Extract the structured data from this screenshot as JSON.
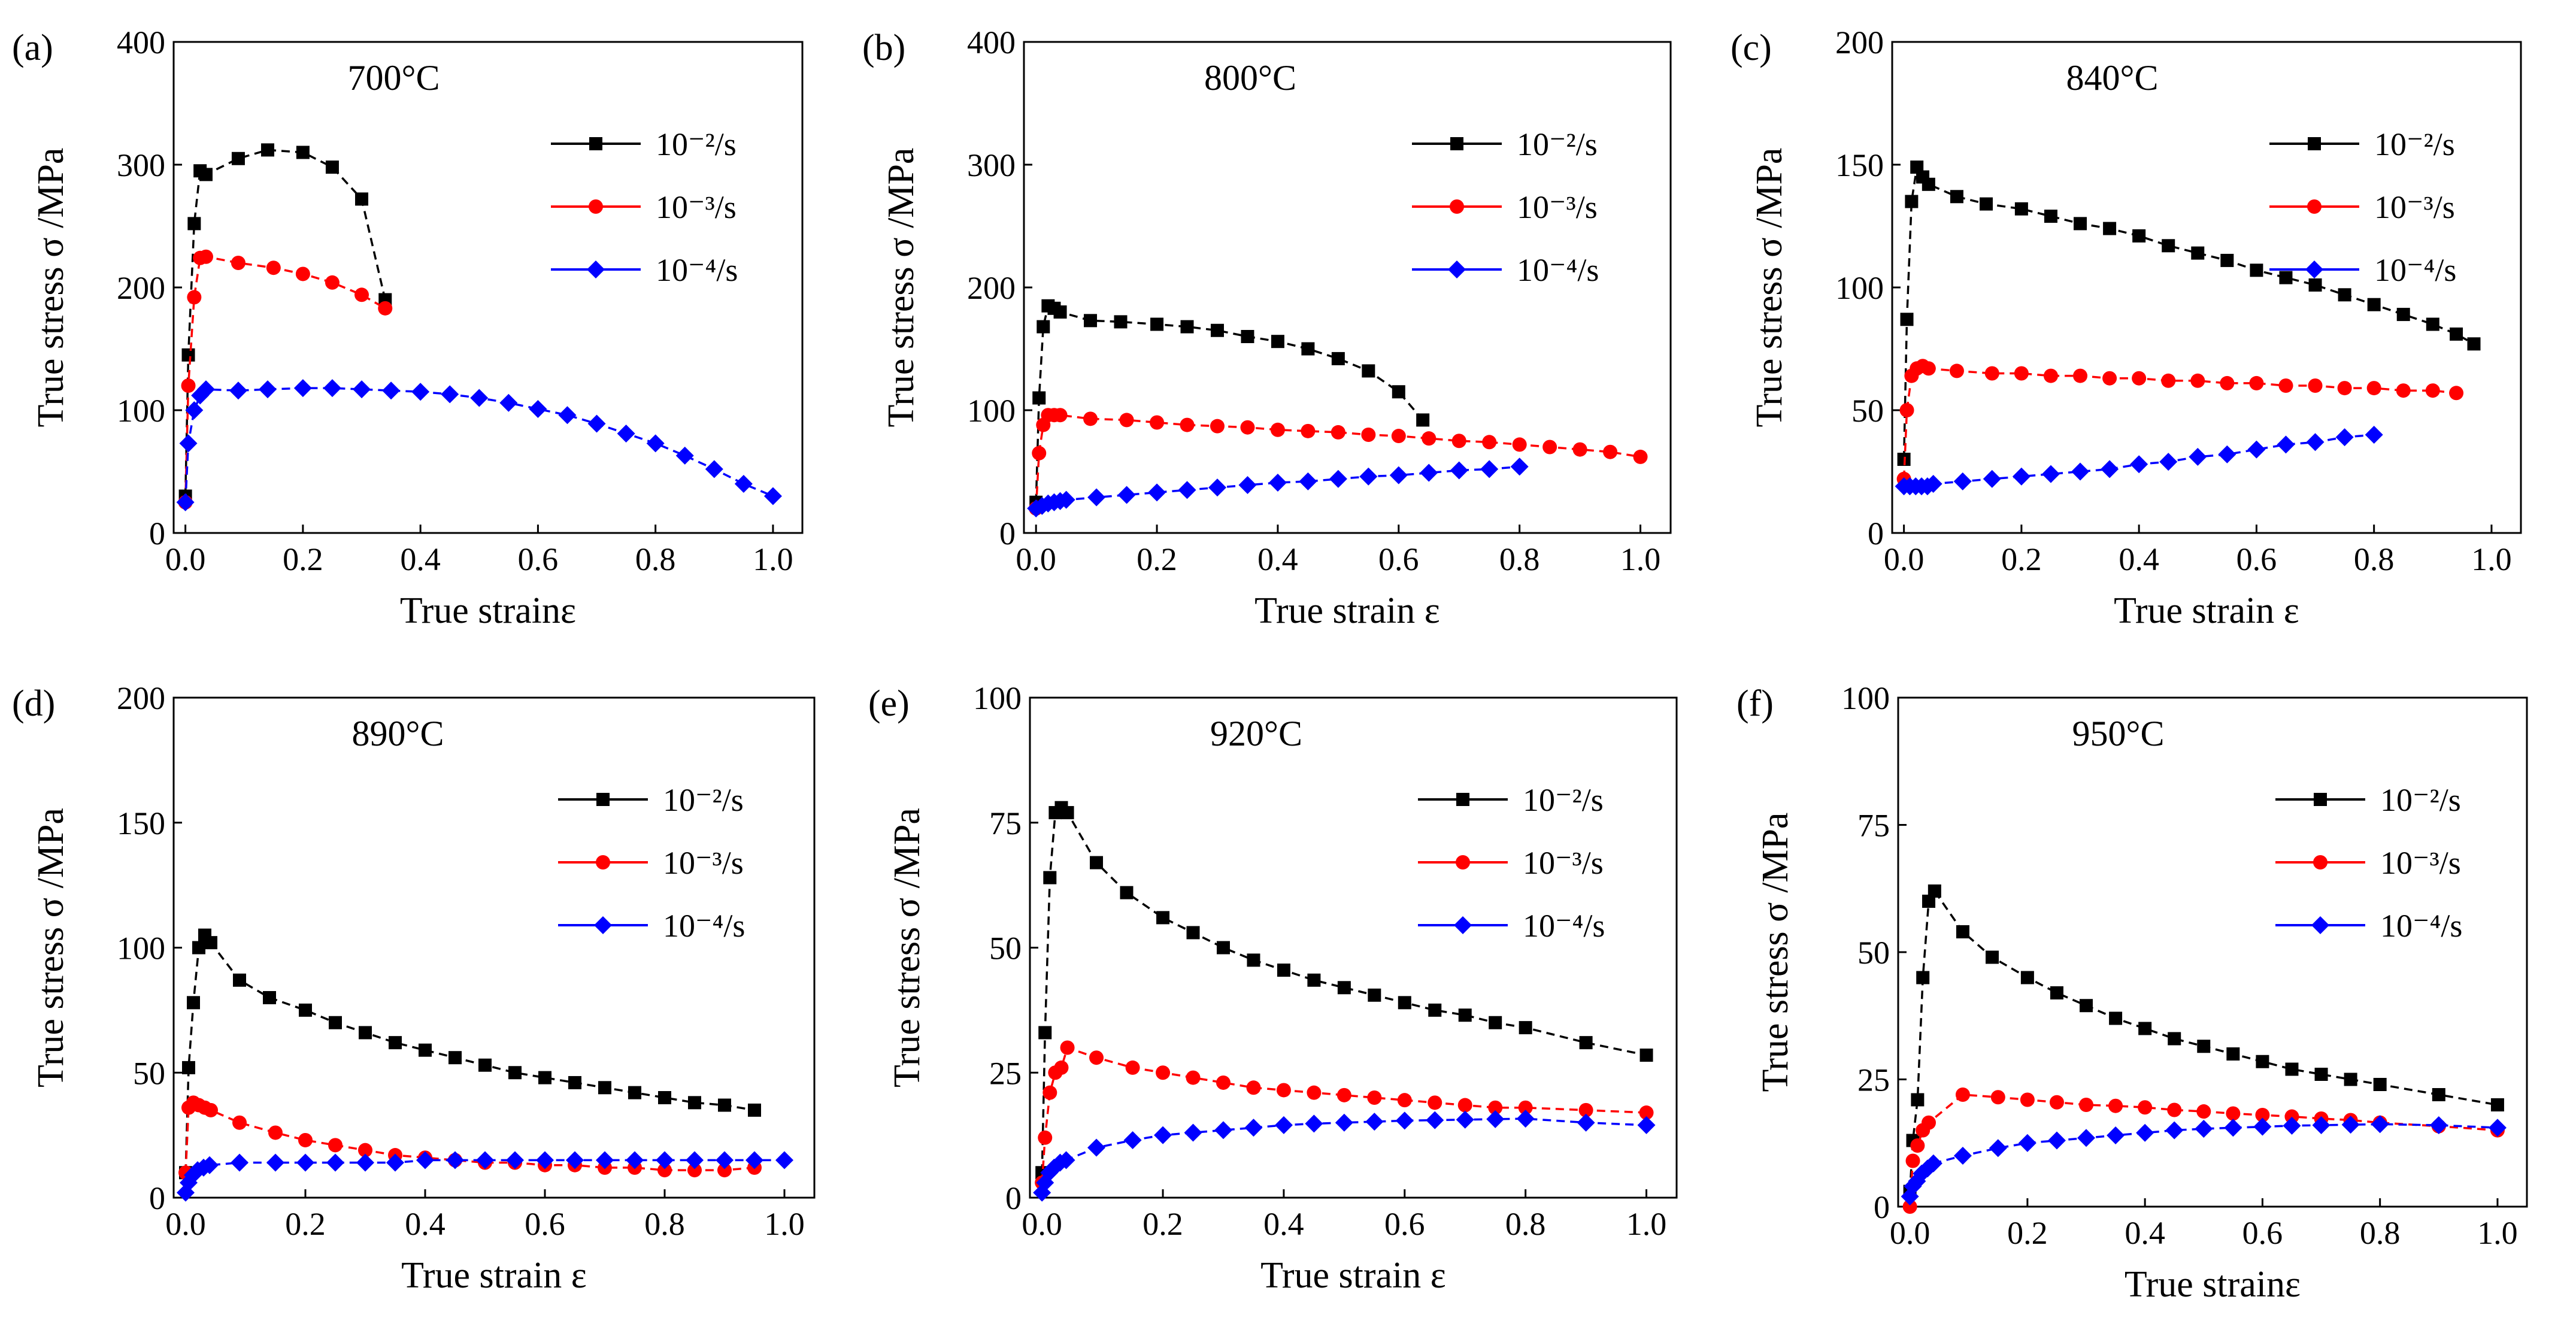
{
  "figure": {
    "legend_labels": [
      "10⁻²/s",
      "10⁻³/s",
      "10⁻⁴/s"
    ],
    "series_colors": [
      "#000000",
      "#ff0000",
      "#0000ff"
    ],
    "marker_shapes": [
      "square",
      "circle",
      "diamond"
    ]
  },
  "chart_data": [
    {
      "type": "line",
      "panel": "(a)",
      "title": "700°C",
      "xlabel": "True strainε",
      "ylabel": "True stress σ /MPa",
      "xlim": [
        -0.02,
        1.05
      ],
      "ylim": [
        0,
        400
      ],
      "xticks": [
        "0.0",
        "0.2",
        "0.4",
        "0.6",
        "0.8",
        "1.0"
      ],
      "yticks": [
        "0",
        "100",
        "200",
        "300",
        "400"
      ],
      "series": [
        {
          "name": "10⁻²/s",
          "x": [
            0,
            0.005,
            0.015,
            0.025,
            0.035,
            0.09,
            0.14,
            0.2,
            0.25,
            0.3,
            0.34
          ],
          "y": [
            30,
            145,
            252,
            295,
            292,
            305,
            312,
            310,
            298,
            272,
            190
          ]
        },
        {
          "name": "10⁻³/s",
          "x": [
            0,
            0.005,
            0.015,
            0.025,
            0.035,
            0.09,
            0.15,
            0.2,
            0.25,
            0.3,
            0.34
          ],
          "y": [
            25,
            120,
            192,
            224,
            225,
            220,
            216,
            211,
            204,
            194,
            183
          ]
        },
        {
          "name": "10⁻⁴/s",
          "x": [
            0,
            0.005,
            0.015,
            0.025,
            0.035,
            0.09,
            0.14,
            0.2,
            0.25,
            0.3,
            0.35,
            0.4,
            0.45,
            0.5,
            0.55,
            0.6,
            0.65,
            0.7,
            0.75,
            0.8,
            0.85,
            0.9,
            0.95,
            1.0
          ],
          "y": [
            25,
            73,
            100,
            112,
            117,
            116,
            117,
            118,
            118,
            117,
            116,
            115,
            113,
            110,
            106,
            101,
            96,
            89,
            81,
            73,
            63,
            52,
            40,
            30
          ]
        }
      ]
    },
    {
      "type": "line",
      "panel": "(b)",
      "title": "800°C",
      "xlabel": "True strain ε",
      "ylabel": "True stress σ /MPa",
      "xlim": [
        -0.02,
        1.05
      ],
      "ylim": [
        0,
        400
      ],
      "xticks": [
        "0.0",
        "0.2",
        "0.4",
        "0.6",
        "0.8",
        "1.0"
      ],
      "yticks": [
        "0",
        "100",
        "200",
        "300",
        "400"
      ],
      "series": [
        {
          "name": "10⁻²/s",
          "x": [
            0,
            0.005,
            0.012,
            0.02,
            0.03,
            0.04,
            0.09,
            0.14,
            0.2,
            0.25,
            0.3,
            0.35,
            0.4,
            0.45,
            0.5,
            0.55,
            0.6,
            0.64
          ],
          "y": [
            25,
            110,
            168,
            185,
            183,
            180,
            173,
            172,
            170,
            168,
            165,
            160,
            156,
            150,
            142,
            132,
            115,
            92
          ]
        },
        {
          "name": "10⁻³/s",
          "x": [
            0,
            0.005,
            0.012,
            0.02,
            0.03,
            0.04,
            0.09,
            0.15,
            0.2,
            0.25,
            0.3,
            0.35,
            0.4,
            0.45,
            0.5,
            0.55,
            0.6,
            0.65,
            0.7,
            0.75,
            0.8,
            0.85,
            0.9,
            0.95,
            1.0
          ],
          "y": [
            20,
            65,
            88,
            96,
            96,
            96,
            93,
            92,
            90,
            88,
            87,
            86,
            84,
            83,
            82,
            80,
            79,
            77,
            75,
            74,
            72,
            70,
            68,
            66,
            62
          ]
        },
        {
          "name": "10⁻⁴/s",
          "x": [
            0,
            0.01,
            0.02,
            0.03,
            0.04,
            0.05,
            0.1,
            0.15,
            0.2,
            0.25,
            0.3,
            0.35,
            0.4,
            0.45,
            0.5,
            0.55,
            0.6,
            0.65,
            0.7,
            0.75,
            0.8
          ],
          "y": [
            20,
            22,
            24,
            25,
            26,
            27,
            29,
            31,
            33,
            35,
            37,
            39,
            41,
            42,
            44,
            46,
            47,
            49,
            51,
            52,
            54
          ]
        }
      ]
    },
    {
      "type": "line",
      "panel": "(c)",
      "title": "840°C",
      "xlabel": "True strain ε",
      "ylabel": "True stress σ /MPa",
      "xlim": [
        -0.02,
        1.05
      ],
      "ylim": [
        0,
        200
      ],
      "xticks": [
        "0.0",
        "0.2",
        "0.4",
        "0.6",
        "0.8",
        "1.0"
      ],
      "yticks": [
        "0",
        "50",
        "100",
        "150",
        "200"
      ],
      "series": [
        {
          "name": "10⁻²/s",
          "x": [
            0,
            0.005,
            0.013,
            0.022,
            0.032,
            0.042,
            0.09,
            0.14,
            0.2,
            0.25,
            0.3,
            0.35,
            0.4,
            0.45,
            0.5,
            0.55,
            0.6,
            0.65,
            0.7,
            0.75,
            0.8,
            0.85,
            0.9,
            0.94,
            0.97
          ],
          "y": [
            30,
            87,
            135,
            149,
            145,
            142,
            137,
            134,
            132,
            129,
            126,
            124,
            121,
            117,
            114,
            111,
            107,
            104,
            101,
            97,
            93,
            89,
            85,
            81,
            77
          ]
        },
        {
          "name": "10⁻³/s",
          "x": [
            0,
            0.005,
            0.013,
            0.022,
            0.032,
            0.042,
            0.09,
            0.15,
            0.2,
            0.25,
            0.3,
            0.35,
            0.4,
            0.45,
            0.5,
            0.55,
            0.6,
            0.65,
            0.7,
            0.75,
            0.8,
            0.85,
            0.9,
            0.94
          ],
          "y": [
            22,
            50,
            64,
            67,
            68,
            67,
            66,
            65,
            65,
            64,
            64,
            63,
            63,
            62,
            62,
            61,
            61,
            60,
            60,
            59,
            59,
            58,
            58,
            57
          ]
        },
        {
          "name": "10⁻⁴/s",
          "x": [
            0,
            0.01,
            0.02,
            0.03,
            0.04,
            0.05,
            0.1,
            0.15,
            0.2,
            0.25,
            0.3,
            0.35,
            0.4,
            0.45,
            0.5,
            0.55,
            0.6,
            0.65,
            0.7,
            0.75,
            0.8
          ],
          "y": [
            19,
            19,
            19,
            19,
            19,
            20,
            21,
            22,
            23,
            24,
            25,
            26,
            28,
            29,
            31,
            32,
            34,
            36,
            37,
            39,
            40
          ]
        }
      ]
    },
    {
      "type": "line",
      "panel": "(d)",
      "title": "890°C",
      "xlabel": "True strain ε",
      "ylabel": "True stress σ /MPa",
      "xlim": [
        -0.02,
        1.05
      ],
      "ylim": [
        0,
        200
      ],
      "xticks": [
        "0.0",
        "0.2",
        "0.4",
        "0.6",
        "0.8",
        "1.0"
      ],
      "yticks": [
        "0",
        "50",
        "100",
        "150",
        "200"
      ],
      "series": [
        {
          "name": "10⁻²/s",
          "x": [
            0,
            0.005,
            0.013,
            0.022,
            0.032,
            0.042,
            0.09,
            0.14,
            0.2,
            0.25,
            0.3,
            0.35,
            0.4,
            0.45,
            0.5,
            0.55,
            0.6,
            0.65,
            0.7,
            0.75,
            0.8,
            0.85,
            0.9,
            0.95
          ],
          "y": [
            10,
            52,
            78,
            100,
            105,
            102,
            87,
            80,
            75,
            70,
            66,
            62,
            59,
            56,
            53,
            50,
            48,
            46,
            44,
            42,
            40,
            38,
            37,
            35
          ]
        },
        {
          "name": "10⁻³/s",
          "x": [
            0,
            0.005,
            0.013,
            0.022,
            0.032,
            0.042,
            0.09,
            0.15,
            0.2,
            0.25,
            0.3,
            0.35,
            0.4,
            0.45,
            0.5,
            0.55,
            0.6,
            0.65,
            0.7,
            0.75,
            0.8,
            0.85,
            0.9,
            0.95
          ],
          "y": [
            10,
            36,
            38,
            37,
            36,
            35,
            30,
            26,
            23,
            21,
            19,
            17,
            16,
            15,
            14,
            14,
            13,
            13,
            12,
            12,
            11,
            11,
            11,
            12
          ]
        },
        {
          "name": "10⁻⁴/s",
          "x": [
            0,
            0.005,
            0.012,
            0.02,
            0.03,
            0.04,
            0.09,
            0.15,
            0.2,
            0.25,
            0.3,
            0.35,
            0.4,
            0.45,
            0.5,
            0.55,
            0.6,
            0.65,
            0.7,
            0.75,
            0.8,
            0.85,
            0.9,
            0.95,
            1.0
          ],
          "y": [
            2,
            6,
            9,
            11,
            12,
            13,
            14,
            14,
            14,
            14,
            14,
            14,
            15,
            15,
            15,
            15,
            15,
            15,
            15,
            15,
            15,
            15,
            15,
            15,
            15
          ]
        }
      ]
    },
    {
      "type": "line",
      "panel": "(e)",
      "title": "920°C",
      "xlabel": "True strain ε",
      "ylabel": "True stress σ /MPa",
      "xlim": [
        -0.02,
        1.05
      ],
      "ylim": [
        0,
        100
      ],
      "xticks": [
        "0.0",
        "0.2",
        "0.4",
        "0.6",
        "0.8",
        "1.0"
      ],
      "yticks": [
        "0",
        "25",
        "50",
        "75",
        "100"
      ],
      "series": [
        {
          "name": "10⁻²/s",
          "x": [
            0,
            0.005,
            0.013,
            0.022,
            0.032,
            0.042,
            0.09,
            0.14,
            0.2,
            0.25,
            0.3,
            0.35,
            0.4,
            0.45,
            0.5,
            0.55,
            0.6,
            0.65,
            0.7,
            0.75,
            0.8,
            0.9,
            1.0
          ],
          "y": [
            5,
            33,
            64,
            77,
            78,
            77,
            67,
            61,
            56,
            53,
            50,
            47.5,
            45.5,
            43.5,
            42,
            40.5,
            39,
            37.5,
            36.5,
            35,
            34,
            31,
            28.5
          ]
        },
        {
          "name": "10⁻³/s",
          "x": [
            0,
            0.005,
            0.013,
            0.022,
            0.032,
            0.042,
            0.09,
            0.15,
            0.2,
            0.25,
            0.3,
            0.35,
            0.4,
            0.45,
            0.5,
            0.55,
            0.6,
            0.65,
            0.7,
            0.75,
            0.8,
            0.9,
            1.0
          ],
          "y": [
            3,
            12,
            21,
            25,
            26,
            30,
            28,
            26,
            25,
            24,
            23,
            22,
            21.5,
            21,
            20.5,
            20,
            19.5,
            19,
            18.5,
            18,
            18,
            17.5,
            17
          ]
        },
        {
          "name": "10⁻⁴/s",
          "x": [
            0,
            0.005,
            0.012,
            0.02,
            0.03,
            0.04,
            0.09,
            0.15,
            0.2,
            0.25,
            0.3,
            0.35,
            0.4,
            0.45,
            0.5,
            0.55,
            0.6,
            0.65,
            0.7,
            0.75,
            0.8,
            0.9,
            1.0
          ],
          "y": [
            1,
            3,
            5,
            6,
            7,
            7.5,
            10,
            11.5,
            12.5,
            13,
            13.5,
            14,
            14.5,
            14.8,
            15,
            15.2,
            15.4,
            15.5,
            15.6,
            15.7,
            15.8,
            15,
            14.5
          ]
        }
      ]
    },
    {
      "type": "line",
      "panel": "(f)",
      "title": "950°C",
      "xlabel": "True strainε",
      "ylabel": "True stress σ /MPa",
      "xlim": [
        -0.02,
        1.05
      ],
      "ylim": [
        0,
        100
      ],
      "xticks": [
        "0.0",
        "0.2",
        "0.4",
        "0.6",
        "0.8",
        "1.0"
      ],
      "yticks": [
        "0",
        "25",
        "50",
        "75",
        "100"
      ],
      "series": [
        {
          "name": "10⁻²/s",
          "x": [
            0,
            0.005,
            0.013,
            0.022,
            0.032,
            0.042,
            0.09,
            0.14,
            0.2,
            0.25,
            0.3,
            0.35,
            0.4,
            0.45,
            0.5,
            0.55,
            0.6,
            0.65,
            0.7,
            0.75,
            0.8,
            0.9,
            1.0
          ],
          "y": [
            3,
            13,
            21,
            45,
            60,
            62,
            54,
            49,
            45,
            42,
            39.5,
            37,
            35,
            33,
            31.5,
            30,
            28.5,
            27,
            26,
            25,
            24,
            22,
            20
          ]
        },
        {
          "name": "10⁻³/s",
          "x": [
            0,
            0.005,
            0.013,
            0.022,
            0.032,
            0.09,
            0.15,
            0.2,
            0.25,
            0.3,
            0.35,
            0.4,
            0.45,
            0.5,
            0.55,
            0.6,
            0.65,
            0.7,
            0.75,
            0.8,
            0.9,
            1.0
          ],
          "y": [
            0,
            9,
            12,
            15,
            16.5,
            22,
            21.5,
            21,
            20.5,
            20,
            19.8,
            19.5,
            19,
            18.7,
            18.3,
            18,
            17.7,
            17.3,
            17,
            16.5,
            15.8,
            15
          ]
        },
        {
          "name": "10⁻⁴/s",
          "x": [
            0,
            0.005,
            0.012,
            0.02,
            0.03,
            0.04,
            0.09,
            0.15,
            0.2,
            0.25,
            0.3,
            0.35,
            0.4,
            0.45,
            0.5,
            0.55,
            0.6,
            0.65,
            0.7,
            0.75,
            0.8,
            0.9,
            1.0
          ],
          "y": [
            2,
            4,
            5,
            6.5,
            7.5,
            8.5,
            10,
            11.5,
            12.5,
            13,
            13.5,
            14,
            14.5,
            15,
            15.3,
            15.5,
            15.7,
            15.9,
            16,
            16.1,
            16.2,
            16,
            15.5
          ]
        }
      ]
    }
  ]
}
